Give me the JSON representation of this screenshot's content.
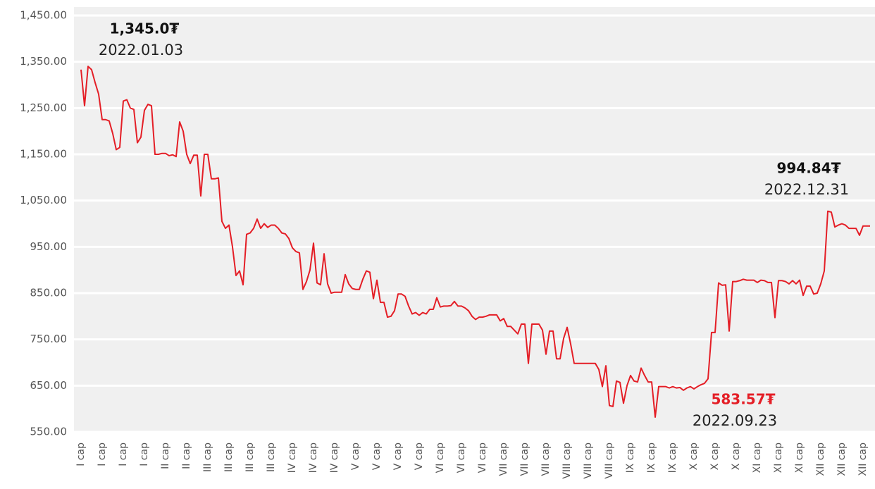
{
  "chart_data": {
    "type": "line",
    "categories": [
      "I cap",
      null,
      null,
      null,
      null,
      null,
      "I cap",
      null,
      null,
      null,
      null,
      null,
      "I cap",
      null,
      null,
      null,
      null,
      null,
      "I cap",
      null,
      null,
      null,
      null,
      null,
      "II cap",
      null,
      null,
      null,
      null,
      null,
      "II cap",
      null,
      null,
      null,
      null,
      null,
      "III cap",
      null,
      null,
      null,
      null,
      null,
      "III cap",
      null,
      null,
      null,
      null,
      null,
      "III cap",
      null,
      null,
      null,
      null,
      null,
      "III cap",
      null,
      null,
      null,
      null,
      null,
      "IV cap",
      null,
      null,
      null,
      null,
      null,
      "IV cap",
      null,
      null,
      null,
      null,
      null,
      "IV cap",
      null,
      null,
      null,
      null,
      null,
      "V cap",
      null,
      null,
      null,
      null,
      null,
      "V cap",
      null,
      null,
      null,
      null,
      null,
      "V cap",
      null,
      null,
      null,
      null,
      null,
      "V cap",
      null,
      null,
      null,
      null,
      null,
      "VI cap",
      null,
      null,
      null,
      null,
      null,
      "VI cap",
      null,
      null,
      null,
      null,
      null,
      "VI cap",
      null,
      null,
      null,
      null,
      null,
      "VII cap",
      null,
      null,
      null,
      null,
      null,
      "VII cap",
      null,
      null,
      null,
      null,
      null,
      "VII cap",
      null,
      null,
      null,
      null,
      null,
      "VIII cap",
      null,
      null,
      null,
      null,
      null,
      "VIII cap",
      null,
      null,
      null,
      null,
      null,
      "VIII cap",
      null,
      null,
      null,
      null,
      null,
      "IX cap",
      null,
      null,
      null,
      null,
      null,
      "IX cap",
      null,
      null,
      null,
      null,
      null,
      "IX cap",
      null,
      null,
      null,
      null,
      null,
      "X cap",
      null,
      null,
      null,
      null,
      null,
      "X cap",
      null,
      null,
      null,
      null,
      null,
      "X cap",
      null,
      null,
      null,
      null,
      null,
      "XI cap",
      null,
      null,
      null,
      null,
      null,
      "XI cap",
      null,
      null,
      null,
      null,
      null,
      "XI cap",
      null,
      null,
      null,
      null,
      null,
      "XII cap",
      null,
      null,
      null,
      null,
      null,
      "XII cap",
      null,
      null,
      null,
      null,
      null,
      "XII cap",
      null,
      null
    ],
    "series": [
      {
        "color": "#e41e26",
        "values": [
          1333,
          1255,
          1340,
          1333,
          1305,
          1280,
          1225,
          1225,
          1222,
          1195,
          1160,
          1165,
          1265,
          1268,
          1250,
          1247,
          1175,
          1187,
          1245,
          1258,
          1255,
          1150,
          1150,
          1152,
          1152,
          1147,
          1149,
          1145,
          1220,
          1200,
          1150,
          1130,
          1148,
          1148,
          1060,
          1150,
          1150,
          1097,
          1097,
          1099,
          1005,
          990,
          997,
          950,
          888,
          898,
          868,
          977,
          980,
          990,
          1010,
          990,
          1000,
          992,
          997,
          997,
          990,
          980,
          978,
          968,
          948,
          940,
          937,
          858,
          875,
          900,
          958,
          872,
          868,
          935,
          870,
          850,
          852,
          852,
          852,
          890,
          870,
          860,
          858,
          858,
          880,
          898,
          895,
          838,
          878,
          830,
          830,
          798,
          800,
          812,
          848,
          848,
          843,
          822,
          805,
          808,
          802,
          808,
          805,
          815,
          815,
          840,
          820,
          822,
          822,
          823,
          832,
          822,
          822,
          818,
          812,
          800,
          793,
          798,
          798,
          800,
          803,
          803,
          803,
          790,
          795,
          778,
          778,
          770,
          762,
          783,
          783,
          698,
          783,
          783,
          783,
          770,
          718,
          768,
          768,
          708,
          708,
          752,
          776,
          740,
          698,
          698,
          698,
          698,
          698,
          698,
          698,
          685,
          648,
          693,
          607,
          605,
          660,
          657,
          612,
          650,
          672,
          660,
          658,
          688,
          672,
          658,
          658,
          582,
          648,
          648,
          648,
          645,
          648,
          645,
          646,
          640,
          645,
          648,
          643,
          648,
          652,
          655,
          665,
          765,
          765,
          872,
          867,
          868,
          768,
          875,
          875,
          877,
          880,
          878,
          878,
          878,
          873,
          878,
          877,
          873,
          873,
          797,
          877,
          877,
          875,
          870,
          877,
          870,
          878,
          845,
          865,
          865,
          848,
          850,
          870,
          898,
          1027,
          1025,
          993,
          997,
          1000,
          997,
          990,
          990,
          990,
          975,
          995,
          995,
          995
        ]
      }
    ],
    "ylim": [
      550,
      1450
    ],
    "yticks": [
      {
        "value": 550,
        "label": "550.00"
      },
      {
        "value": 650,
        "label": "650.00"
      },
      {
        "value": 750,
        "label": "750.00"
      },
      {
        "value": 850,
        "label": "850.00"
      },
      {
        "value": 950,
        "label": "950.00"
      },
      {
        "value": 1050,
        "label": "1,050.00"
      },
      {
        "value": 1150,
        "label": "1,150.00"
      },
      {
        "value": 1250,
        "label": "1,250.00"
      },
      {
        "value": 1350,
        "label": "1,350.00"
      },
      {
        "value": 1450,
        "label": "1,450.00"
      }
    ],
    "grid": true,
    "annotations": [
      {
        "value_label": "1,345.0₮",
        "date": "2022.01.03",
        "color": "#111111"
      },
      {
        "value_label": "994.84₮",
        "date": "2022.12.31",
        "color": "#111111"
      },
      {
        "value_label": "583.57₮",
        "date": "2022.09.23",
        "color": "#e41e26"
      }
    ]
  }
}
